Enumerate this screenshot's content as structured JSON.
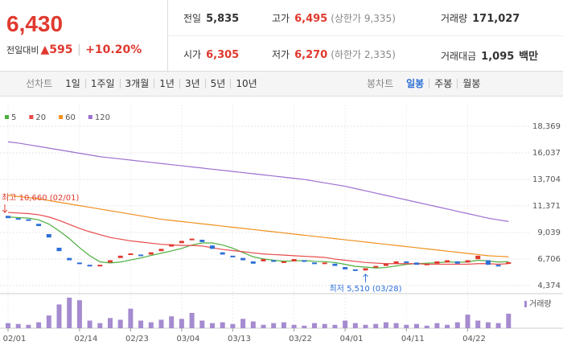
{
  "header": {
    "price": "6,430",
    "change_label": "전일대비",
    "change": "▲595",
    "change_pct": "+10.20%",
    "info": [
      {
        "label": "전일",
        "value": "5,835"
      },
      {
        "label": "고가",
        "value": "6,495",
        "sub": "(상한가 9,335)"
      },
      {
        "label": "거래량",
        "value": "171,027"
      },
      {
        "label": "시가",
        "value": "6,305"
      },
      {
        "label": "저가",
        "value": "6,270",
        "sub": "(하한가 2,335)"
      },
      {
        "label": "거래대금",
        "value": "1,095",
        "unit": "백만"
      }
    ]
  },
  "tabs": {
    "line_label": "선차트",
    "line": [
      "1일",
      "1주일",
      "3개월",
      "1년",
      "3년",
      "5년",
      "10년"
    ],
    "candle_label": "봉차트",
    "candle": [
      "일봉",
      "주봉",
      "월봉"
    ]
  },
  "chart_data": {
    "type": "candlestick",
    "up_color": "#e0392f",
    "down_color": "#2d6fd6",
    "categories": [
      "02/01",
      null,
      null,
      null,
      null,
      null,
      null,
      "02/14",
      null,
      null,
      null,
      null,
      "02/23",
      null,
      null,
      null,
      null,
      "03/04",
      null,
      null,
      null,
      null,
      "03/13",
      null,
      null,
      null,
      null,
      null,
      "03/22",
      null,
      null,
      null,
      null,
      "04/01",
      null,
      null,
      null,
      null,
      null,
      "04/11",
      null,
      null,
      null,
      null,
      null,
      "04/22",
      null,
      null,
      null,
      null
    ],
    "open": [
      10500,
      10300,
      10200,
      9800,
      8900,
      7700,
      6800,
      6400,
      6200,
      6100,
      6400,
      6800,
      7100,
      7100,
      7100,
      7400,
      7800,
      8100,
      8400,
      8400,
      7900,
      7300,
      7000,
      6800,
      6500,
      6500,
      6600,
      6400,
      6500,
      6600,
      6400,
      6300,
      6300,
      6000,
      5800,
      5700,
      6000,
      6100,
      6300,
      6500,
      6400,
      6200,
      6300,
      6400,
      6500,
      6400,
      6700,
      6600,
      6200,
      6305
    ],
    "close": [
      10300,
      10200,
      10100,
      9600,
      8600,
      7400,
      6600,
      6300,
      6100,
      6200,
      6600,
      7000,
      7200,
      7000,
      7300,
      7600,
      8000,
      8300,
      8500,
      8200,
      7600,
      7100,
      6900,
      6600,
      6300,
      6700,
      6500,
      6500,
      6700,
      6500,
      6300,
      6400,
      6100,
      5800,
      5700,
      5900,
      6100,
      6300,
      6500,
      6400,
      6200,
      6300,
      6500,
      6600,
      6300,
      6600,
      7000,
      6200,
      6100,
      6430
    ],
    "series": [
      {
        "name": "5",
        "color": "#4caf3f",
        "values": [
          10400,
          10350,
          10300,
          10150,
          9780,
          9180,
          8500,
          7700,
          7000,
          6460,
          6360,
          6440,
          6620,
          6800,
          7020,
          7220,
          7420,
          7640,
          7940,
          8120,
          8120,
          7940,
          7660,
          7280,
          6900,
          6720,
          6600,
          6520,
          6540,
          6580,
          6500,
          6480,
          6400,
          6240,
          6060,
          6000,
          5920,
          5960,
          6100,
          6240,
          6300,
          6340,
          6380,
          6460,
          6420,
          6460,
          6600,
          6540,
          6440,
          6480
        ]
      },
      {
        "name": "20",
        "color": "#e84a4a",
        "values": [
          10800,
          10750,
          10700,
          10600,
          10400,
          10100,
          9750,
          9400,
          9100,
          8850,
          8600,
          8450,
          8300,
          8200,
          8100,
          8000,
          7950,
          7900,
          7900,
          7850,
          7700,
          7550,
          7450,
          7350,
          7250,
          7150,
          7100,
          7050,
          7000,
          6950,
          6900,
          6850,
          6700,
          6600,
          6500,
          6400,
          6350,
          6300,
          6300,
          6300,
          6300,
          6250,
          6250,
          6250,
          6250,
          6250,
          6300,
          6300,
          6250,
          6300
        ]
      },
      {
        "name": "60",
        "color": "#f0901e",
        "values": [
          12300,
          12200,
          12100,
          12000,
          11850,
          11700,
          11550,
          11400,
          11250,
          11100,
          10950,
          10800,
          10650,
          10500,
          10350,
          10200,
          10100,
          10000,
          9900,
          9800,
          9700,
          9600,
          9500,
          9400,
          9300,
          9200,
          9100,
          9000,
          8900,
          8800,
          8700,
          8600,
          8500,
          8400,
          8300,
          8200,
          8100,
          8000,
          7900,
          7800,
          7700,
          7600,
          7500,
          7400,
          7300,
          7200,
          7100,
          7000,
          6950,
          6900
        ]
      },
      {
        "name": "120",
        "color": "#9c6fd0",
        "values": [
          17000,
          16900,
          16750,
          16600,
          16450,
          16300,
          16150,
          16000,
          15850,
          15700,
          15600,
          15500,
          15400,
          15300,
          15200,
          15100,
          15000,
          14900,
          14800,
          14700,
          14600,
          14500,
          14400,
          14300,
          14200,
          14100,
          14000,
          13900,
          13800,
          13700,
          13550,
          13400,
          13250,
          13100,
          12900,
          12700,
          12500,
          12300,
          12100,
          11900,
          11700,
          11500,
          11300,
          11100,
          10900,
          10700,
          10500,
          10300,
          10150,
          10000
        ]
      }
    ],
    "volume": {
      "name": "거래량",
      "color": "#a58bd0",
      "values": [
        60000,
        50000,
        40000,
        70000,
        150000,
        280000,
        360000,
        330000,
        90000,
        60000,
        120000,
        100000,
        230000,
        90000,
        70000,
        100000,
        140000,
        110000,
        180000,
        90000,
        60000,
        70000,
        50000,
        110000,
        80000,
        40000,
        60000,
        70000,
        40000,
        30000,
        60000,
        50000,
        40000,
        90000,
        60000,
        40000,
        50000,
        70000,
        60000,
        40000,
        50000,
        30000,
        60000,
        40000,
        70000,
        160000,
        90000,
        70000,
        60000,
        171027
      ]
    },
    "ylim": [
      4374,
      18369
    ],
    "yticks": [
      {
        "value": 18369,
        "label": "18,369"
      },
      {
        "value": 16037,
        "label": "16,037"
      },
      {
        "value": 13704,
        "label": "13,704"
      },
      {
        "value": 11371,
        "label": "11,371"
      },
      {
        "value": 9039,
        "label": "9,039"
      },
      {
        "value": 6706,
        "label": "6,706"
      },
      {
        "value": 4374,
        "label": "4,374"
      }
    ],
    "annotations": [
      {
        "text": "최고 10,660 (02/01)",
        "value": 10660,
        "color": "#e0392f"
      },
      {
        "text": "최저 5,510 (03/28)",
        "value": 5510,
        "color": "#2d6fd6"
      }
    ]
  }
}
